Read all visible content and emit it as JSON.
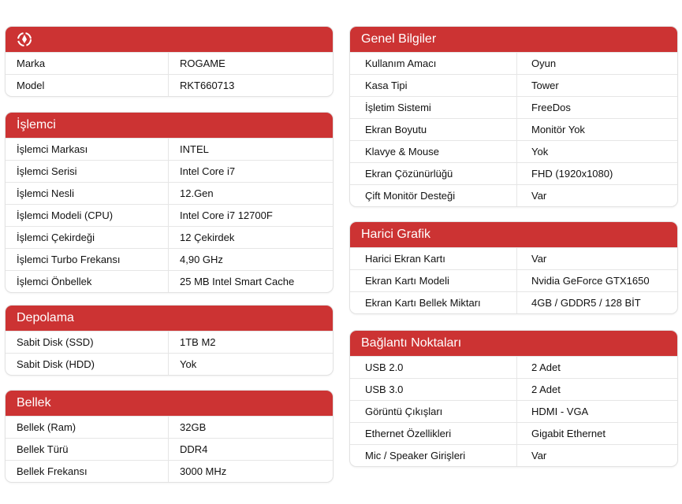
{
  "colors": {
    "header": "#cc3333"
  },
  "left": [
    {
      "title": "",
      "icon": "brand-logo-icon",
      "rows": [
        [
          "Marka",
          "ROGAME"
        ],
        [
          "Model",
          "RKT660713"
        ]
      ]
    },
    {
      "title": "İşlemci",
      "rows": [
        [
          "İşlemci Markası",
          "INTEL"
        ],
        [
          "İşlemci Serisi",
          "Intel Core i7"
        ],
        [
          "İşlemci Nesli",
          "12.Gen"
        ],
        [
          "İşlemci Modeli (CPU)",
          "Intel Core i7 12700F"
        ],
        [
          "İşlemci Çekirdeği",
          "12 Çekirdek"
        ],
        [
          "İşlemci Turbo Frekansı",
          "4,90 GHz"
        ],
        [
          "İşlemci Önbellek",
          "25 MB Intel Smart Cache"
        ]
      ]
    },
    {
      "title": "Depolama",
      "rows": [
        [
          "Sabit Disk (SSD)",
          "1TB M2"
        ],
        [
          "Sabit Disk (HDD)",
          "Yok"
        ]
      ]
    },
    {
      "title": "Bellek",
      "rows": [
        [
          "Bellek (Ram)",
          "32GB"
        ],
        [
          "Bellek Türü",
          "DDR4"
        ],
        [
          "Bellek Frekansı",
          "3000 MHz"
        ]
      ]
    }
  ],
  "right": [
    {
      "title": "Genel Bilgiler",
      "rows": [
        [
          "Kullanım Amacı",
          "Oyun"
        ],
        [
          "Kasa Tipi",
          "Tower"
        ],
        [
          "İşletim Sistemi",
          "FreeDos"
        ],
        [
          "Ekran Boyutu",
          "Monitör Yok"
        ],
        [
          "Klavye & Mouse",
          "Yok"
        ],
        [
          "Ekran Çözünürlüğü",
          "FHD (1920x1080)"
        ],
        [
          "Çift Monitör Desteği",
          "Var"
        ]
      ]
    },
    {
      "title": "Harici Grafik",
      "rows": [
        [
          "Harici Ekran Kartı",
          "Var"
        ],
        [
          "Ekran Kartı Modeli",
          "Nvidia GeForce GTX1650"
        ],
        [
          "Ekran Kartı Bellek Miktarı",
          "4GB / GDDR5 / 128 BİT"
        ]
      ]
    },
    {
      "title": "Bağlantı Noktaları",
      "rows": [
        [
          "USB 2.0",
          "2 Adet"
        ],
        [
          "USB 3.0",
          "2 Adet"
        ],
        [
          "Görüntü Çıkışları",
          "HDMI - VGA"
        ],
        [
          "Ethernet Özellikleri",
          "Gigabit Ethernet"
        ],
        [
          "Mic / Speaker Girişleri",
          "Var"
        ]
      ]
    }
  ]
}
